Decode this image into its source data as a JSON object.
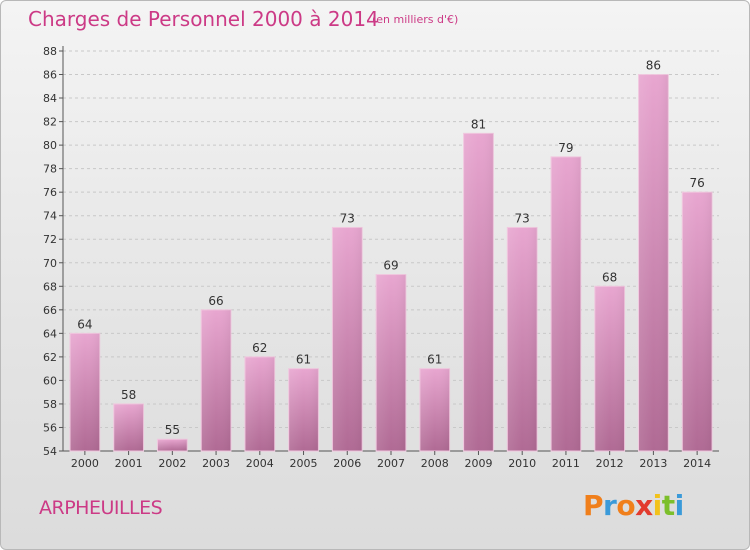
{
  "header": {
    "title": "Charges de Personnel 2000 à 2014",
    "unit": "(en milliers d'€)"
  },
  "footer": {
    "commune": "ARPHEUILLES",
    "logo": "Proxiti"
  },
  "colors": {
    "title": "#cc3a86",
    "bar_top": "#e8a6d0",
    "bar_bottom": "#b06a94",
    "logo_letters": [
      "#f07f1b",
      "#3a9ad9",
      "#f07f1b",
      "#e23b2e",
      "#f2c21b",
      "#7cbf2b",
      "#3a9ad9"
    ]
  },
  "chart_data": {
    "type": "bar",
    "categories": [
      "2000",
      "2001",
      "2002",
      "2003",
      "2004",
      "2005",
      "2006",
      "2007",
      "2008",
      "2009",
      "2010",
      "2011",
      "2012",
      "2013",
      "2014"
    ],
    "values": [
      64,
      58,
      55,
      66,
      62,
      61,
      73,
      69,
      61,
      81,
      73,
      79,
      68,
      86,
      76
    ],
    "data_labels": [
      "64",
      "58",
      "55",
      "66",
      "62",
      "61",
      "73",
      "69",
      "61",
      "81",
      "73",
      "79",
      "68",
      "86",
      "76"
    ],
    "ylim": [
      54,
      88
    ],
    "yticks": [
      54,
      56,
      58,
      60,
      62,
      64,
      66,
      68,
      70,
      72,
      74,
      76,
      78,
      80,
      82,
      84,
      86,
      88
    ],
    "ytick_labels": [
      "54",
      "56",
      "58",
      "60",
      "62",
      "64",
      "66",
      "68",
      "70",
      "72",
      "74",
      "76",
      "78",
      "80",
      "82",
      "84",
      "86",
      "88"
    ],
    "grid": true
  }
}
